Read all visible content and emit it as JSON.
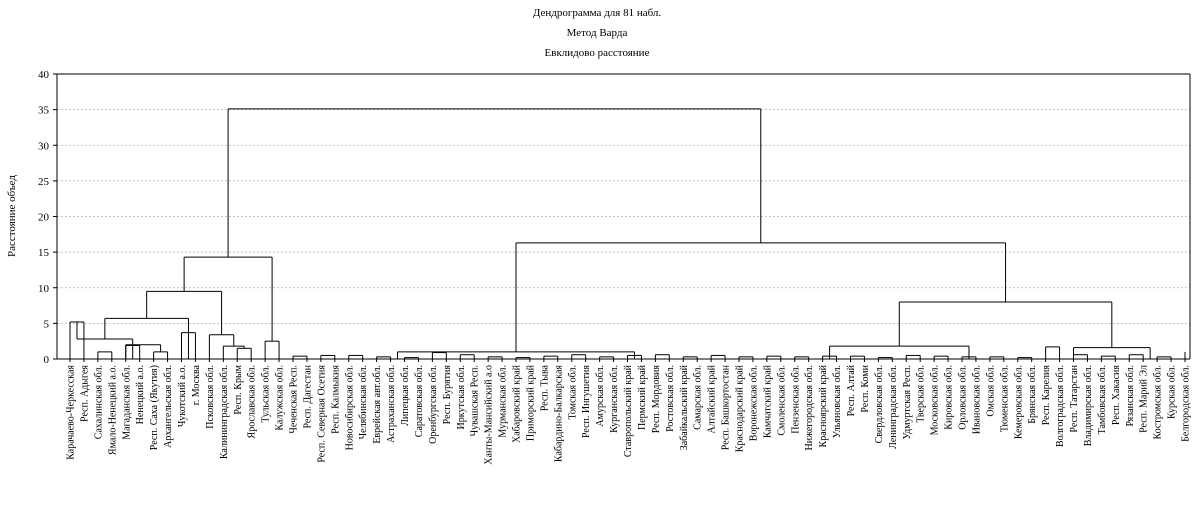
{
  "chart_data": {
    "type": "dendrogram",
    "title": "Дендрограмма для 81 набл.",
    "subtitle_1": "Метод Варда",
    "subtitle_2": "Евклидово расстояние",
    "ylabel": "Расстояние объед",
    "ylim": [
      0,
      40
    ],
    "yticks": [
      0,
      5,
      10,
      15,
      20,
      25,
      30,
      35,
      40
    ],
    "grid": true,
    "leaves": [
      "Карачаево-Черкесская",
      "Респ. Адыгея",
      "Сахалинская обл.",
      "Ямало-Ненецкий а.о.",
      "Магаданская обл.",
      "Ненецкий а.о.",
      "Респ. Саха (Якутия)",
      "Архангельская обл.",
      "Чукотский а.о.",
      "г. Москва",
      "Псковская обл.",
      "Калининградская обл.",
      "Респ. Крым",
      "Ярославская обл.",
      "Тульская обл.",
      "Калужская обл.",
      "Чеченская Респ.",
      "Респ. Дагестан",
      "Респ. Северная Осетия",
      "Респ. Калмыкия",
      "Новосибирская обл.",
      "Челябинская обл.",
      "Еврейская авт.обл.",
      "Астраханская обл.",
      "Липецкая обл.",
      "Саратовская обл.",
      "Оренбургская обл.",
      "Респ. Бурятия",
      "Иркутская обл.",
      "Чувашская Респ.",
      "Ханты-Мансийский а.о",
      "Мурманская обл.",
      "Хабаровский край",
      "Приморский край",
      "Респ. Тыва",
      "Кабардино-Балкарская",
      "Томская обл.",
      "Респ. Ингушетия",
      "Амурская обл.",
      "Курганская обл.",
      "Ставропольский край",
      "Пермский край",
      "Респ. Мордовия",
      "Ростовская обл.",
      "Забайкальский край",
      "Самарская обл.",
      "Алтайский край",
      "Респ. Башкортостан",
      "Краснодарский край",
      "Воронежская обл.",
      "Камчатский край",
      "Смоленская обл.",
      "Пензенская обл.",
      "Нижегородская обл.",
      "Красноярский край",
      "Ульяновская обл.",
      "Респ. Алтай",
      "Респ. Коми",
      "Свердловская обл.",
      "Ленинградская обл.",
      "Удмуртская Респ.",
      "Тверская обл.",
      "Московская обл.",
      "Кировская обл.",
      "Орловская обл.",
      "Ивановская обл.",
      "Омская обл.",
      "Тюменская обл.",
      "Кемеровская обл.",
      "Брянская обл.",
      "Респ. Карелия",
      "Волгоградская обл.",
      "Респ. Татарстан",
      "Владимирская обл.",
      "Тамбовская обл.",
      "Респ. Хакасия",
      "Рязанская обл.",
      "Респ. Марий Эл",
      "Костромская обл.",
      "Курская обл.",
      "Белгородская обл."
    ],
    "merges": [
      {
        "a": [
          2,
          2
        ],
        "b": [
          3,
          3
        ],
        "h": 1.0
      },
      {
        "a": [
          4,
          4
        ],
        "b": [
          5,
          5
        ],
        "h": 1.9
      },
      {
        "a": [
          6,
          6
        ],
        "b": [
          7,
          7
        ],
        "h": 1.0
      },
      {
        "a": [
          3,
          5
        ],
        "b": [
          6,
          7
        ],
        "h": 2.0
      },
      {
        "a": [
          0,
          0
        ],
        "b": [
          1,
          1
        ],
        "h": 5.2
      },
      {
        "a": [
          2,
          7
        ],
        "b": [
          0,
          1
        ],
        "h": 2.8
      },
      {
        "a": [
          0,
          7
        ],
        "b": [
          8,
          9
        ],
        "h": 5.7
      },
      {
        "a": [
          8,
          8
        ],
        "b": [
          9,
          9
        ],
        "h": 3.7
      },
      {
        "a": [
          12,
          12
        ],
        "b": [
          13,
          13
        ],
        "h": 1.5
      },
      {
        "a": [
          11,
          11
        ],
        "b": [
          12,
          13
        ],
        "h": 1.8
      },
      {
        "a": [
          10,
          10
        ],
        "b": [
          11,
          13
        ],
        "h": 3.4
      },
      {
        "a": [
          14,
          14
        ],
        "b": [
          15,
          15
        ],
        "h": 2.5
      },
      {
        "a": [
          0,
          9
        ],
        "b": [
          10,
          13
        ],
        "h": 9.5
      },
      {
        "a": [
          0,
          13
        ],
        "b": [
          14,
          15
        ],
        "h": 14.3
      },
      {
        "a": [
          16,
          16
        ],
        "b": [
          17,
          17
        ],
        "h": 0.4
      },
      {
        "a": [
          18,
          18
        ],
        "b": [
          19,
          19
        ],
        "h": 0.5
      },
      {
        "a": [
          20,
          20
        ],
        "b": [
          21,
          21
        ],
        "h": 0.5
      },
      {
        "a": [
          22,
          22
        ],
        "b": [
          23,
          23
        ],
        "h": 0.3
      },
      {
        "a": [
          24,
          24
        ],
        "b": [
          25,
          25
        ],
        "h": 0.2
      },
      {
        "a": [
          26,
          26
        ],
        "b": [
          27,
          27
        ],
        "h": 0.9
      },
      {
        "a": [
          28,
          28
        ],
        "b": [
          29,
          29
        ],
        "h": 0.6
      },
      {
        "a": [
          30,
          30
        ],
        "b": [
          31,
          31
        ],
        "h": 0.3
      },
      {
        "a": [
          32,
          32
        ],
        "b": [
          33,
          33
        ],
        "h": 0.2
      },
      {
        "a": [
          34,
          34
        ],
        "b": [
          35,
          35
        ],
        "h": 0.4
      },
      {
        "a": [
          36,
          36
        ],
        "b": [
          37,
          37
        ],
        "h": 0.6
      },
      {
        "a": [
          38,
          38
        ],
        "b": [
          39,
          39
        ],
        "h": 0.3
      },
      {
        "a": [
          40,
          40
        ],
        "b": [
          41,
          41
        ],
        "h": 0.5
      },
      {
        "a": [
          42,
          42
        ],
        "b": [
          43,
          43
        ],
        "h": 0.6
      },
      {
        "a": [
          44,
          44
        ],
        "b": [
          45,
          45
        ],
        "h": 0.3
      },
      {
        "a": [
          46,
          46
        ],
        "b": [
          47,
          47
        ],
        "h": 0.5
      },
      {
        "a": [
          48,
          48
        ],
        "b": [
          49,
          49
        ],
        "h": 0.3
      },
      {
        "a": [
          16,
          31
        ],
        "b": [
          32,
          49
        ],
        "h": 1.0
      },
      {
        "a": [
          16,
          49
        ],
        "b": [
          16,
          49
        ],
        "h": 3.0
      },
      {
        "a": [
          50,
          50
        ],
        "b": [
          51,
          51
        ],
        "h": 0.4
      },
      {
        "a": [
          52,
          52
        ],
        "b": [
          53,
          53
        ],
        "h": 0.3
      },
      {
        "a": [
          54,
          54
        ],
        "b": [
          55,
          55
        ],
        "h": 0.4
      },
      {
        "a": [
          56,
          56
        ],
        "b": [
          57,
          57
        ],
        "h": 0.4
      },
      {
        "a": [
          58,
          58
        ],
        "b": [
          59,
          59
        ],
        "h": 0.2
      },
      {
        "a": [
          60,
          60
        ],
        "b": [
          61,
          61
        ],
        "h": 0.5
      },
      {
        "a": [
          62,
          62
        ],
        "b": [
          63,
          63
        ],
        "h": 0.4
      },
      {
        "a": [
          64,
          64
        ],
        "b": [
          65,
          65
        ],
        "h": 0.3
      },
      {
        "a": [
          66,
          66
        ],
        "b": [
          67,
          67
        ],
        "h": 0.3
      },
      {
        "a": [
          68,
          68
        ],
        "b": [
          69,
          69
        ],
        "h": 0.2
      },
      {
        "a": [
          50,
          59
        ],
        "b": [
          60,
          69
        ],
        "h": 1.8
      },
      {
        "a": [
          70,
          70
        ],
        "b": [
          71,
          71
        ],
        "h": 1.7
      },
      {
        "a": [
          72,
          72
        ],
        "b": [
          73,
          73
        ],
        "h": 0.6
      },
      {
        "a": [
          74,
          74
        ],
        "b": [
          75,
          75
        ],
        "h": 0.4
      },
      {
        "a": [
          76,
          76
        ],
        "b": [
          77,
          77
        ],
        "h": 0.6
      },
      {
        "a": [
          78,
          78
        ],
        "b": [
          79,
          79
        ],
        "h": 0.3
      },
      {
        "a": [
          80,
          80
        ],
        "b": [
          80,
          80
        ],
        "h": 1.0
      },
      {
        "a": [
          70,
          74
        ],
        "b": [
          75,
          80
        ],
        "h": 1.6
      },
      {
        "a": [
          50,
          69
        ],
        "b": [
          70,
          80
        ],
        "h": 8.0
      },
      {
        "a": [
          16,
          49
        ],
        "b": [
          50,
          80
        ],
        "h": 16.3
      },
      {
        "a": [
          0,
          15
        ],
        "b": [
          16,
          80
        ],
        "h": 35.1
      }
    ]
  }
}
